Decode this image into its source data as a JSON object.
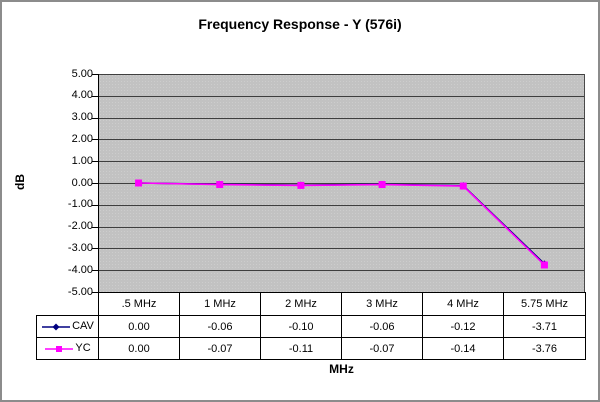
{
  "window": {
    "border_color": "#8c8c8c",
    "background": "#ffffff"
  },
  "chart_data": {
    "type": "line",
    "title": "Frequency Response - Y (576i)",
    "xlabel": "MHz",
    "ylabel": "dB",
    "categories": [
      ".5 MHz",
      "1 MHz",
      "2 MHz",
      "3 MHz",
      "4 MHz",
      "5.75 MHz"
    ],
    "series": [
      {
        "name": "CAV",
        "color": "#000080",
        "marker": "diamond",
        "values": [
          0.0,
          -0.06,
          -0.1,
          -0.06,
          -0.12,
          -3.71
        ]
      },
      {
        "name": "YC",
        "color": "#FF00FF",
        "marker": "square",
        "values": [
          0.0,
          -0.07,
          -0.11,
          -0.07,
          -0.14,
          -3.76
        ]
      }
    ],
    "ylim": [
      -5,
      5
    ],
    "ytick_step": 1,
    "ytick_decimals": 2,
    "grid": true,
    "plot_background": "#c2c2c2",
    "gridline_color": "#3f3f3f",
    "legend_position": "table-left",
    "data_table_shown": true
  }
}
